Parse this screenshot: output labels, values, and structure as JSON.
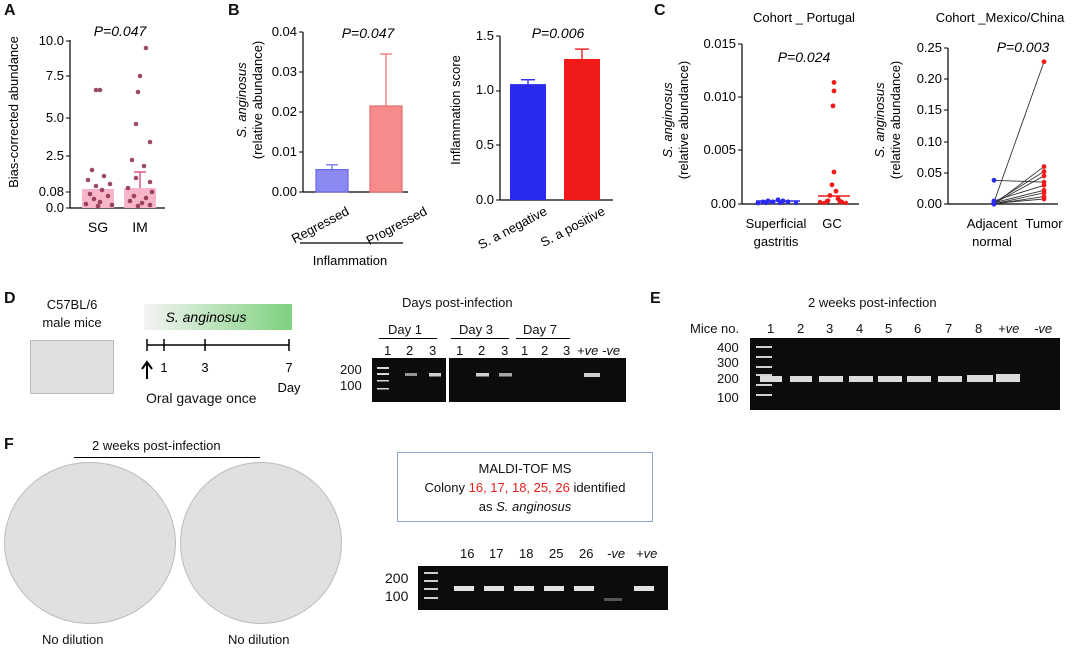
{
  "panels": {
    "A": "A",
    "B": "B",
    "C": "C",
    "D": "D",
    "E": "E",
    "F": "F"
  },
  "A": {
    "p": "P=0.047",
    "ylabel": "Bias-corrected  abundance",
    "yticks": [
      "10.0",
      "7.5",
      "5.0",
      "2.5",
      "0.08",
      "0.0"
    ],
    "cats": [
      "SG",
      "IM"
    ]
  },
  "B1": {
    "p": "P=0.047",
    "ylabel_it": "S. anginosus",
    "ylabel": "(relative abundance)",
    "yticks": [
      "0.04",
      "0.03",
      "0.02",
      "0.01",
      "0.00"
    ],
    "cats": [
      "Regressed",
      "Progressed"
    ],
    "group": "Inflammation"
  },
  "B2": {
    "p": "P=0.006",
    "ylabel": "Inflammation score",
    "yticks": [
      "1.5",
      "1.0",
      "0.5",
      "0.0"
    ],
    "cats": [
      "S. a negative",
      "S. a positive"
    ]
  },
  "C1": {
    "title": "Cohort _ Portugal",
    "p": "P=0.024",
    "ylabel_it": "S. anginosus",
    "ylabel": "(relative abundance)",
    "yticks": [
      "0.015",
      "0.010",
      "0.005",
      "0.00"
    ],
    "cat1a": "Superficial",
    "cat1b": "gastritis",
    "cat2": "GC"
  },
  "C2": {
    "title": "Cohort _Mexico/China",
    "p": "P=0.003",
    "ylabel_it": "S. anginosus",
    "ylabel": "(relative abundance)",
    "yticks": [
      "0.25",
      "0.20",
      "0.15",
      "0.10",
      "0.05",
      "0.00"
    ],
    "cat1a": "Adjacent",
    "cat1b": "normal",
    "cat2": "Tumor"
  },
  "D": {
    "mouse1": "C57BL/6",
    "mouse2": "male mice",
    "bar": "S. anginosus",
    "ticks": [
      "1",
      "3",
      "7"
    ],
    "day": "Day",
    "gavage": "Oral gavage once",
    "title": "Days post-infection",
    "day1": "Day 1",
    "day3": "Day 3",
    "day7": "Day 7",
    "lanes": [
      "1",
      "2",
      "3",
      "1",
      "2",
      "3",
      "1",
      "2",
      "3"
    ],
    "pos": "+ve",
    "neg": "-ve",
    "ladder": [
      "200",
      "100"
    ]
  },
  "E": {
    "title": "2 weeks post-infection",
    "miceno": "Mice no.",
    "lanes": [
      "1",
      "2",
      "3",
      "4",
      "5",
      "6",
      "7",
      "8"
    ],
    "pos": "+ve",
    "neg": "-ve",
    "ladder": [
      "400",
      "300",
      "200",
      "100"
    ]
  },
  "F": {
    "title": "2 weeks post-infection",
    "cap1": "No dilution",
    "cap2": "No dilution",
    "maldi": "MALDI-TOF MS",
    "colony": "Colony",
    "colony_ids": "16, 17, 18, 25, 26",
    "identified": "identified",
    "as": "as",
    "species": "S. anginosus",
    "lanes": [
      "16",
      "17",
      "18",
      "25",
      "26"
    ],
    "neg": "-ve",
    "pos": "+ve",
    "ladder": [
      "200",
      "100"
    ]
  },
  "colors": {
    "blue": "#2b2bf0",
    "red": "#f01a1a",
    "pink": "#f58b8b",
    "lightblue": "#8a8af2",
    "magenta": "#d6336c",
    "green": "#7ed17e"
  },
  "images": {
    "mouse": "black mouse photo",
    "plate1": "agar plate photo",
    "plate2": "agar plate photo"
  },
  "chart_data": [
    {
      "type": "bar",
      "title": "",
      "categories": [
        "SG",
        "IM"
      ],
      "values": [
        0.9,
        0.95
      ],
      "ylabel": "Bias-corrected  abundance",
      "ylim": [
        0,
        10
      ],
      "p": "P=0.047"
    },
    {
      "type": "bar",
      "categories": [
        "Regressed",
        "Progressed"
      ],
      "values": [
        0.0056,
        0.0215
      ],
      "errors": [
        0.0012,
        0.013
      ],
      "ylabel": "S. anginosus (relative abundance)",
      "ylim": [
        0,
        0.04
      ],
      "p": "P=0.047"
    },
    {
      "type": "bar",
      "categories": [
        "S. a negative",
        "S. a positive"
      ],
      "values": [
        1.06,
        1.29
      ],
      "errors": [
        0.04,
        0.09
      ],
      "ylabel": "Inflammation score",
      "ylim": [
        0,
        1.5
      ],
      "p": "P=0.006"
    },
    {
      "type": "scatter",
      "title": "Cohort _ Portugal",
      "categories": [
        "Superficial gastritis",
        "GC"
      ],
      "series": [
        {
          "name": "Superficial gastritis",
          "values": [
            0.0,
            0.0001,
            0.0002,
            0.0001,
            0.0003,
            0.0002,
            0.0001
          ]
        },
        {
          "name": "GC",
          "values": [
            0.0114,
            0.0106,
            0.0092,
            0.003,
            0.0018,
            0.0012,
            0.0008,
            0.0005,
            0.0003,
            0.0002
          ]
        }
      ],
      "ylim": [
        0,
        0.015
      ],
      "p": "P=0.024"
    },
    {
      "type": "line",
      "title": "Cohort _Mexico/China",
      "categories": [
        "Adjacent normal",
        "Tumor"
      ],
      "pairs": [
        [
          0.003,
          0.228
        ],
        [
          0.0,
          0.06
        ],
        [
          0.002,
          0.052
        ],
        [
          0.001,
          0.045
        ],
        [
          0.038,
          0.035
        ],
        [
          0.005,
          0.03
        ],
        [
          0.002,
          0.022
        ],
        [
          0.0,
          0.018
        ],
        [
          0.0,
          0.012
        ],
        [
          0.001,
          0.008
        ]
      ],
      "ylim": [
        0,
        0.25
      ],
      "p": "P=0.003"
    }
  ]
}
